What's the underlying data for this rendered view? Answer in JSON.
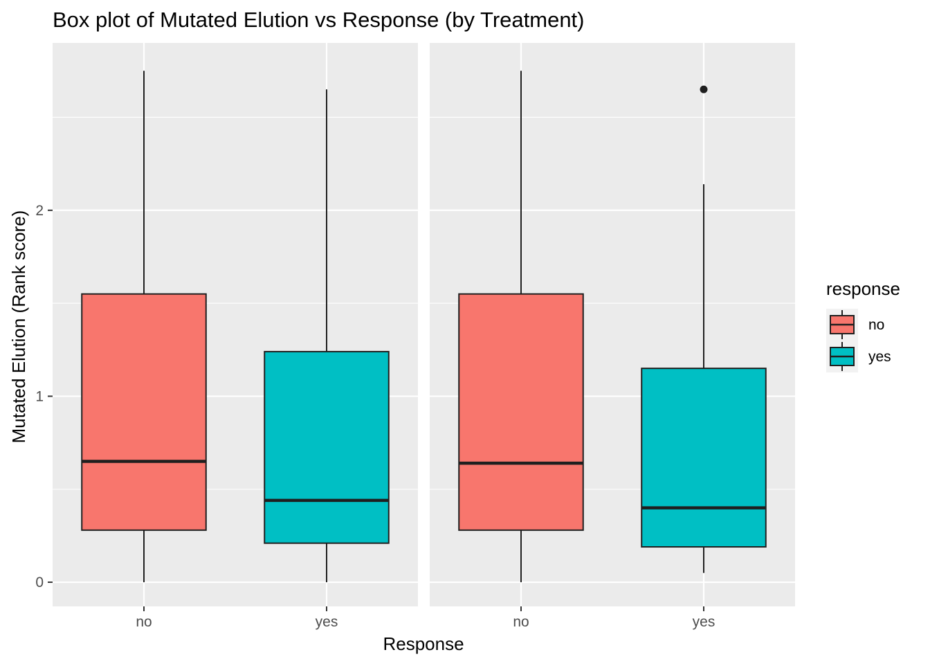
{
  "chart_data": {
    "type": "box",
    "title": "Box plot of Mutated Elution vs Response (by Treatment)",
    "xlabel": "Response",
    "ylabel": "Mutated Elution (Rank score)",
    "ylim": [
      -0.13,
      2.9
    ],
    "yticks": [
      0,
      1,
      2
    ],
    "categories": [
      "no",
      "yes"
    ],
    "colors": {
      "no": "#F8766D",
      "yes": "#00BFC4"
    },
    "legend": {
      "title": "response",
      "position": "right",
      "entries": [
        {
          "label": "no",
          "color": "#F8766D"
        },
        {
          "label": "yes",
          "color": "#00BFC4"
        }
      ]
    },
    "panels": [
      {
        "boxes": [
          {
            "category": "no",
            "min": 0.0,
            "q1": 0.28,
            "median": 0.65,
            "q3": 1.55,
            "max": 2.75,
            "outliers": []
          },
          {
            "category": "yes",
            "min": 0.0,
            "q1": 0.21,
            "median": 0.44,
            "q3": 1.24,
            "max": 2.65,
            "outliers": []
          }
        ]
      },
      {
        "boxes": [
          {
            "category": "no",
            "min": 0.0,
            "q1": 0.28,
            "median": 0.64,
            "q3": 1.55,
            "max": 2.75,
            "outliers": []
          },
          {
            "category": "yes",
            "min": 0.05,
            "q1": 0.19,
            "median": 0.4,
            "q3": 1.15,
            "max": 2.14,
            "outliers": [
              2.65
            ]
          }
        ]
      }
    ]
  }
}
